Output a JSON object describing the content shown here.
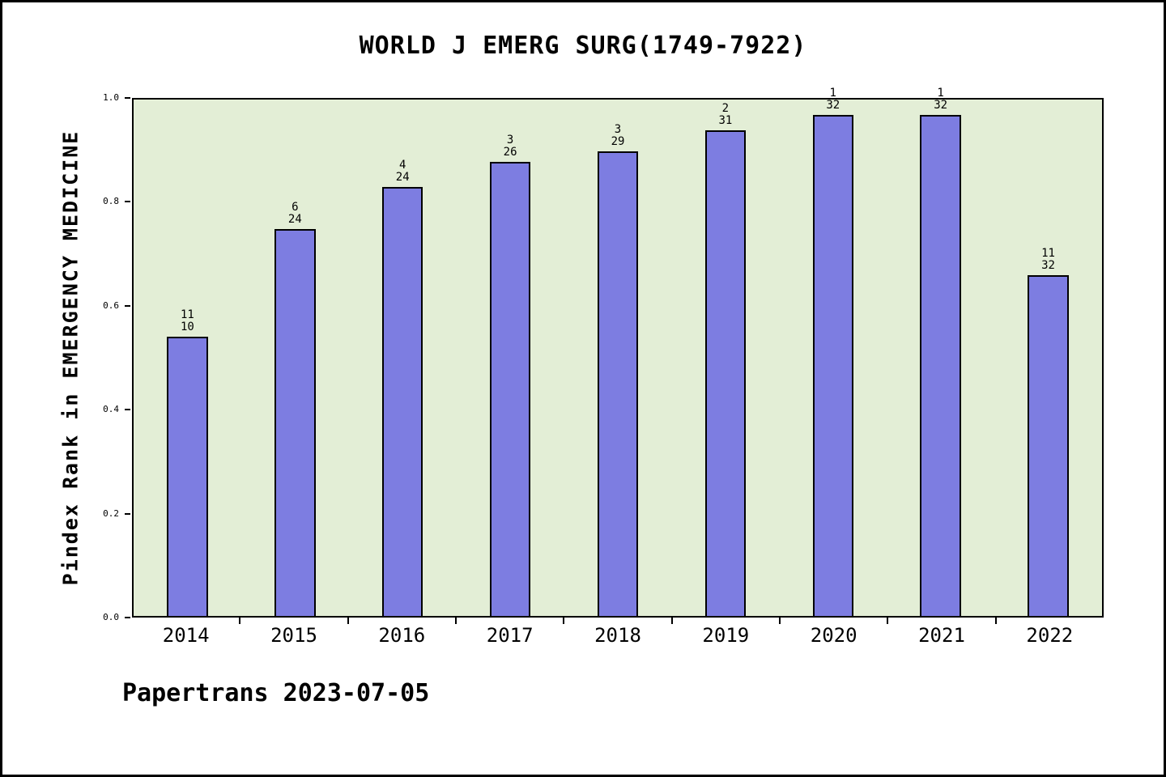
{
  "page": {
    "footer": "Papertrans 2023-07-05"
  },
  "chart_data": {
    "type": "bar",
    "title": "WORLD J EMERG SURG(1749-7922)",
    "xlabel": "",
    "ylabel": "Pindex Rank in EMERGENCY MEDICINE",
    "ylim": [
      0.0,
      1.0
    ],
    "yticks": [
      "0.0",
      "0.2",
      "0.4",
      "0.6",
      "0.8",
      "1.0"
    ],
    "grid": false,
    "legend": "none",
    "categories": [
      "2014",
      "2015",
      "2016",
      "2017",
      "2018",
      "2019",
      "2020",
      "2021",
      "2022"
    ],
    "values": [
      0.54,
      0.75,
      0.83,
      0.88,
      0.9,
      0.94,
      0.97,
      0.97,
      0.66
    ],
    "bar_labels": [
      {
        "top": "11",
        "bottom": "10"
      },
      {
        "top": "6",
        "bottom": "24"
      },
      {
        "top": "4",
        "bottom": "24"
      },
      {
        "top": "3",
        "bottom": "26"
      },
      {
        "top": "3",
        "bottom": "29"
      },
      {
        "top": "2",
        "bottom": "31"
      },
      {
        "top": "1",
        "bottom": "32"
      },
      {
        "top": "1",
        "bottom": "32"
      },
      {
        "top": "11",
        "bottom": "32"
      }
    ],
    "colors": {
      "bar_fill": "#7d7de1",
      "bar_edge": "#000000",
      "plot_bg": "#e3eed6"
    }
  }
}
